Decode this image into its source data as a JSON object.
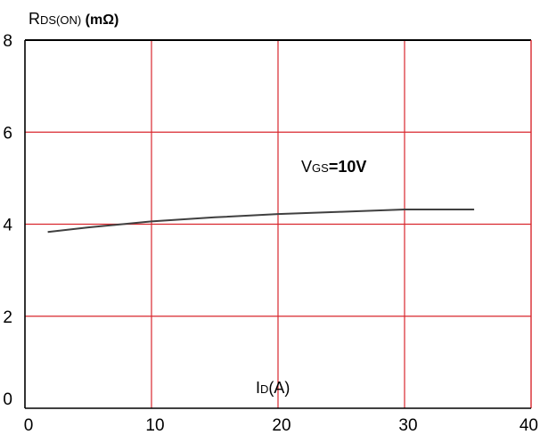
{
  "chart_data": {
    "type": "line",
    "ylabel": {
      "main": "R",
      "sub": "DS(ON)",
      "unit": " (mΩ)"
    },
    "xlabel": {
      "main": "I",
      "sub": "D",
      "unit": "(A)"
    },
    "annotation": {
      "main": "V",
      "sub": "GS",
      "value": "=10V"
    },
    "xlim": [
      0,
      40
    ],
    "ylim": [
      0,
      8
    ],
    "x_ticks": [
      {
        "value": 0,
        "label": "0"
      },
      {
        "value": 10,
        "label": "10"
      },
      {
        "value": 20,
        "label": "20"
      },
      {
        "value": 30,
        "label": "30"
      },
      {
        "value": 40,
        "label": "40"
      }
    ],
    "y_ticks": [
      {
        "value": 0,
        "label": "0"
      },
      {
        "value": 2,
        "label": "2"
      },
      {
        "value": 4,
        "label": "4"
      },
      {
        "value": 6,
        "label": "6"
      },
      {
        "value": 8,
        "label": "8"
      }
    ],
    "grid": true,
    "colors": {
      "grid": "#d9272e",
      "line": "#404040",
      "frame": "#000000"
    },
    "series": [
      {
        "x": [
          1.8,
          5,
          10,
          15,
          20,
          25,
          30,
          35.5
        ],
        "y": [
          3.83,
          3.93,
          4.06,
          4.15,
          4.22,
          4.27,
          4.32,
          4.32
        ]
      }
    ]
  }
}
